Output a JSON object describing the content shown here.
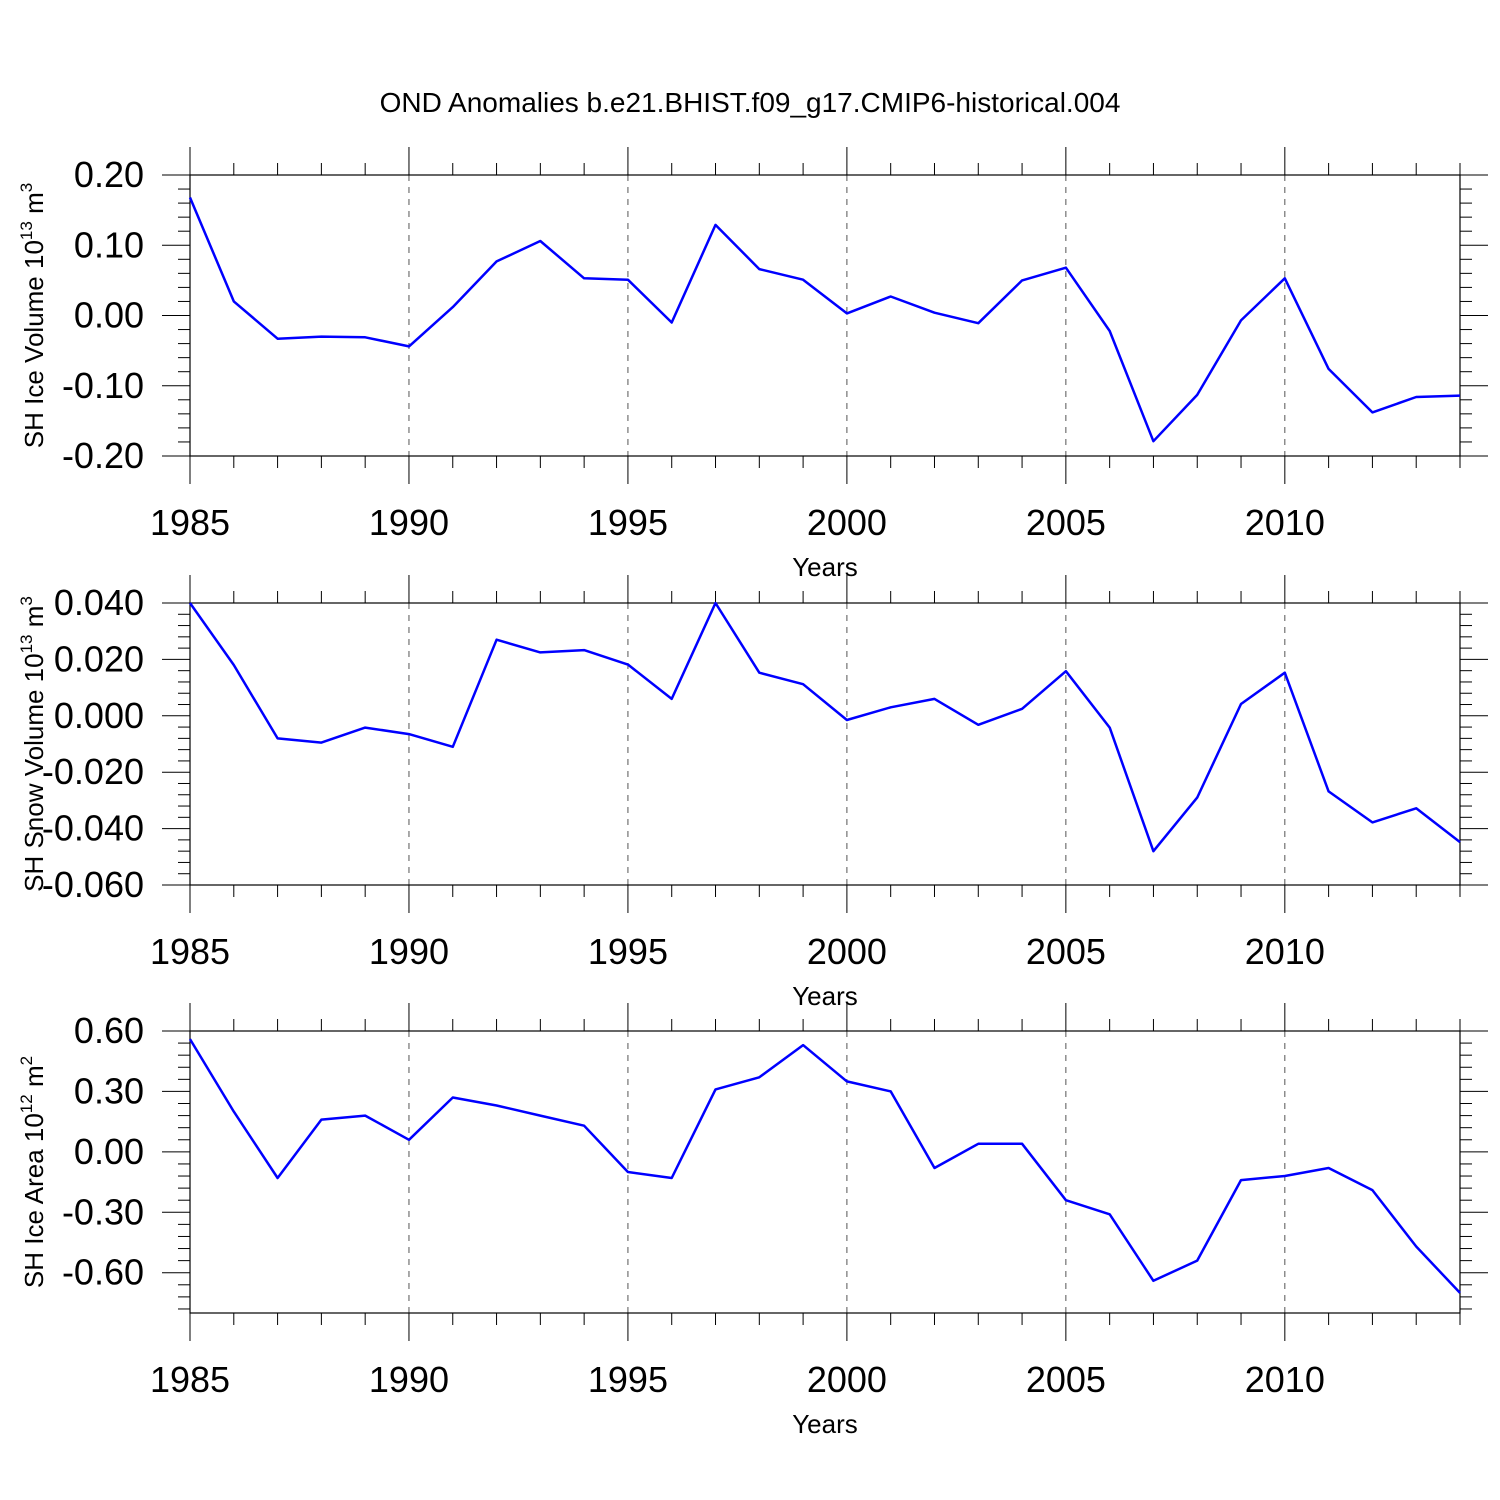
{
  "title": "OND Anomalies b.e21.BHIST.f09_g17.CMIP6-historical.004",
  "line_color": "#0000ff",
  "chart_data": [
    {
      "type": "line",
      "xlabel": "Years",
      "ylabel": {
        "main": "SH Ice Volume 10",
        "exp": "13",
        "unit": " m",
        "unit_exp": "3"
      },
      "xlim": [
        1985,
        2014
      ],
      "ylim": [
        -0.2,
        0.2
      ],
      "xticks": [
        "1985",
        "1990",
        "1995",
        "2000",
        "2005",
        "2010"
      ],
      "yticks": [
        "0.20",
        "0.10",
        "0.00",
        "-0.10",
        "-0.20"
      ],
      "ytick_values": [
        0.2,
        0.1,
        0.0,
        -0.1,
        -0.2
      ],
      "grid": "dashed vertical at labeled years",
      "series": [
        {
          "x": [
            1985,
            1986,
            1987,
            1988,
            1989,
            1990,
            1991,
            1992,
            1993,
            1994,
            1995,
            1996,
            1997,
            1998,
            1999,
            2000,
            2001,
            2002,
            2003,
            2004,
            2005,
            2006,
            2007,
            2008,
            2009,
            2010,
            2011,
            2012,
            2013,
            2014
          ],
          "values": [
            0.168,
            0.02,
            -0.033,
            -0.03,
            -0.031,
            -0.044,
            0.012,
            0.077,
            0.106,
            0.053,
            0.051,
            -0.01,
            0.129,
            0.066,
            0.051,
            0.003,
            0.027,
            0.004,
            -0.011,
            0.05,
            0.068,
            -0.022,
            -0.179,
            -0.113,
            -0.007,
            0.053,
            -0.076,
            -0.138,
            -0.116,
            -0.114
          ]
        }
      ]
    },
    {
      "type": "line",
      "xlabel": "Years",
      "ylabel": {
        "main": "SH Snow Volume 10",
        "exp": "13",
        "unit": " m",
        "unit_exp": "3"
      },
      "xlim": [
        1985,
        2014
      ],
      "ylim": [
        -0.06,
        0.04
      ],
      "xticks": [
        "1985",
        "1990",
        "1995",
        "2000",
        "2005",
        "2010"
      ],
      "yticks": [
        "0.040",
        "0.020",
        "0.000",
        "-0.020",
        "-0.040",
        "-0.060"
      ],
      "ytick_values": [
        0.04,
        0.02,
        0.0,
        -0.02,
        -0.04,
        -0.06
      ],
      "grid": "dashed vertical at labeled years",
      "series": [
        {
          "x": [
            1985,
            1986,
            1987,
            1988,
            1989,
            1990,
            1991,
            1992,
            1993,
            1994,
            1995,
            1996,
            1997,
            1998,
            1999,
            2000,
            2001,
            2002,
            2003,
            2004,
            2005,
            2006,
            2007,
            2008,
            2009,
            2010,
            2011,
            2012,
            2013,
            2014
          ],
          "values": [
            0.04,
            0.018,
            -0.008,
            -0.0095,
            -0.0042,
            -0.0065,
            -0.011,
            0.027,
            0.0225,
            0.0233,
            0.0182,
            0.006,
            0.04,
            0.0153,
            0.0112,
            -0.0015,
            0.003,
            0.006,
            -0.0032,
            0.0025,
            0.0158,
            -0.0042,
            -0.048,
            -0.029,
            0.0042,
            0.0153,
            -0.0268,
            -0.0378,
            -0.0328,
            -0.0448
          ]
        }
      ]
    },
    {
      "type": "line",
      "xlabel": "Years",
      "ylabel": {
        "main": "SH Ice Area 10",
        "exp": "12",
        "unit": " m",
        "unit_exp": "2"
      },
      "xlim": [
        1985,
        2014
      ],
      "ylim": [
        -0.8,
        0.6
      ],
      "xticks": [
        "1985",
        "1990",
        "1995",
        "2000",
        "2005",
        "2010"
      ],
      "yticks": [
        "0.60",
        "0.30",
        "0.00",
        "-0.30",
        "-0.60"
      ],
      "ytick_values": [
        0.6,
        0.3,
        0.0,
        -0.3,
        -0.6
      ],
      "grid": "dashed vertical at labeled years",
      "series": [
        {
          "x": [
            1985,
            1986,
            1987,
            1988,
            1989,
            1990,
            1991,
            1992,
            1993,
            1994,
            1995,
            1996,
            1997,
            1998,
            1999,
            2000,
            2001,
            2002,
            2003,
            2004,
            2005,
            2006,
            2007,
            2008,
            2009,
            2010,
            2011,
            2012,
            2013,
            2014
          ],
          "values": [
            0.56,
            0.2,
            -0.13,
            0.16,
            0.18,
            0.06,
            0.27,
            0.23,
            0.18,
            0.13,
            -0.1,
            -0.13,
            0.31,
            0.37,
            0.53,
            0.35,
            0.3,
            -0.08,
            0.04,
            0.04,
            -0.24,
            -0.31,
            -0.64,
            -0.54,
            -0.14,
            -0.12,
            -0.08,
            -0.19,
            -0.47,
            -0.7
          ]
        }
      ]
    }
  ]
}
